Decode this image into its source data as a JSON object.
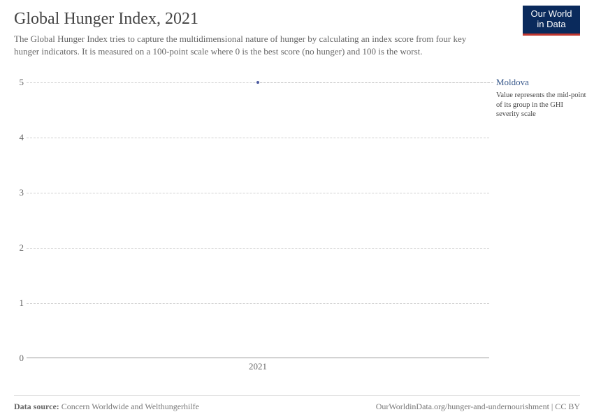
{
  "header": {
    "title": "Global Hunger Index, 2021",
    "subtitle": "The Global Hunger Index tries to capture the multidimensional nature of hunger by calculating an index score from four key hunger indicators. It is measured on a 100-point scale where 0 is the best score (no hunger) and 100 is the worst.",
    "logo_line1": "Our World",
    "logo_line2": "in Data"
  },
  "chart": {
    "type": "scatter",
    "ylim": [
      0,
      5
    ],
    "yticks": [
      0,
      1,
      2,
      3,
      4,
      5
    ],
    "xticks": [
      "2021"
    ],
    "xtick_positions_frac": [
      0.5
    ],
    "grid_color": "#d0d0d0",
    "axis_color": "#999999",
    "background_color": "#ffffff",
    "series": {
      "label": "Moldova",
      "label_color": "#3a5a8c",
      "note": "Value represents the mid-point of its group in the GHI severity scale",
      "color": "#4c5aa0",
      "point": {
        "x_frac": 0.5,
        "y": 5
      },
      "marker_size_px": 4
    }
  },
  "footer": {
    "source_prefix": "Data source:",
    "source_text": "Concern Worldwide and Welthungerhilfe",
    "attribution": "OurWorldinData.org/hunger-and-undernourishment | CC BY"
  }
}
